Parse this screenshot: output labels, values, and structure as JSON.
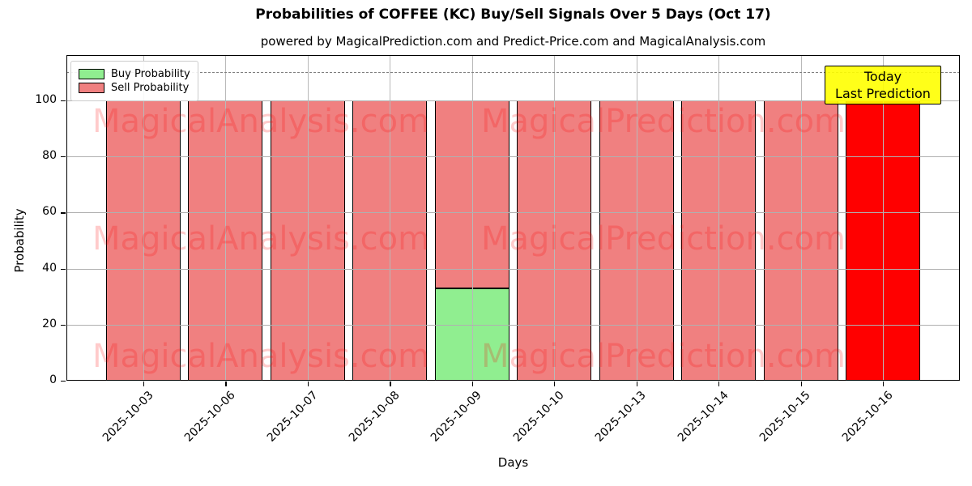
{
  "title": "Probabilities of COFFEE (KC) Buy/Sell Signals Over 5 Days (Oct 17)",
  "subtitle": "powered by MagicalPrediction.com and Predict-Price.com and MagicalAnalysis.com",
  "annotation": {
    "line1": "Today",
    "line2": "Last Prediction",
    "bg_color": "#FFFF00"
  },
  "legend": {
    "items": [
      {
        "label": "Buy Probability",
        "color": "#90EE90"
      },
      {
        "label": "Sell Probability",
        "color": "#F08080"
      }
    ]
  },
  "watermarks": {
    "left": "MagicalAnalysis.com",
    "right": "MagicalPrediction.com",
    "color": "#ff0000"
  },
  "colors": {
    "buy": "#90EE90",
    "sell": "#F08080",
    "today_highlight": "#FF0000",
    "bar_edge": "#000000",
    "grid": "#b0b0b0",
    "dashed_line": "#7f7f7f"
  },
  "chart_data": {
    "type": "bar",
    "stacked": true,
    "title": "Probabilities of COFFEE (KC) Buy/Sell Signals Over 5 Days (Oct 17)",
    "xlabel": "Days",
    "ylabel": "Probability",
    "categories": [
      "2025-10-03",
      "2025-10-06",
      "2025-10-07",
      "2025-10-08",
      "2025-10-09",
      "2025-10-10",
      "2025-10-13",
      "2025-10-14",
      "2025-10-15",
      "2025-10-16"
    ],
    "series": [
      {
        "name": "Buy Probability",
        "color": "#90EE90",
        "values": [
          0,
          0,
          0,
          0,
          33,
          0,
          0,
          0,
          0,
          0
        ]
      },
      {
        "name": "Sell Probability",
        "color": "#F08080",
        "values": [
          100,
          100,
          100,
          100,
          67,
          100,
          100,
          100,
          100,
          100
        ]
      }
    ],
    "highlight": {
      "index": 9,
      "color": "#FF0000",
      "note": "Today / Last Prediction"
    },
    "yticks": [
      0,
      20,
      40,
      60,
      80,
      100
    ],
    "ylim": [
      0,
      116
    ],
    "dashed_line_y": 110,
    "grid": true,
    "legend_position": "upper left"
  }
}
